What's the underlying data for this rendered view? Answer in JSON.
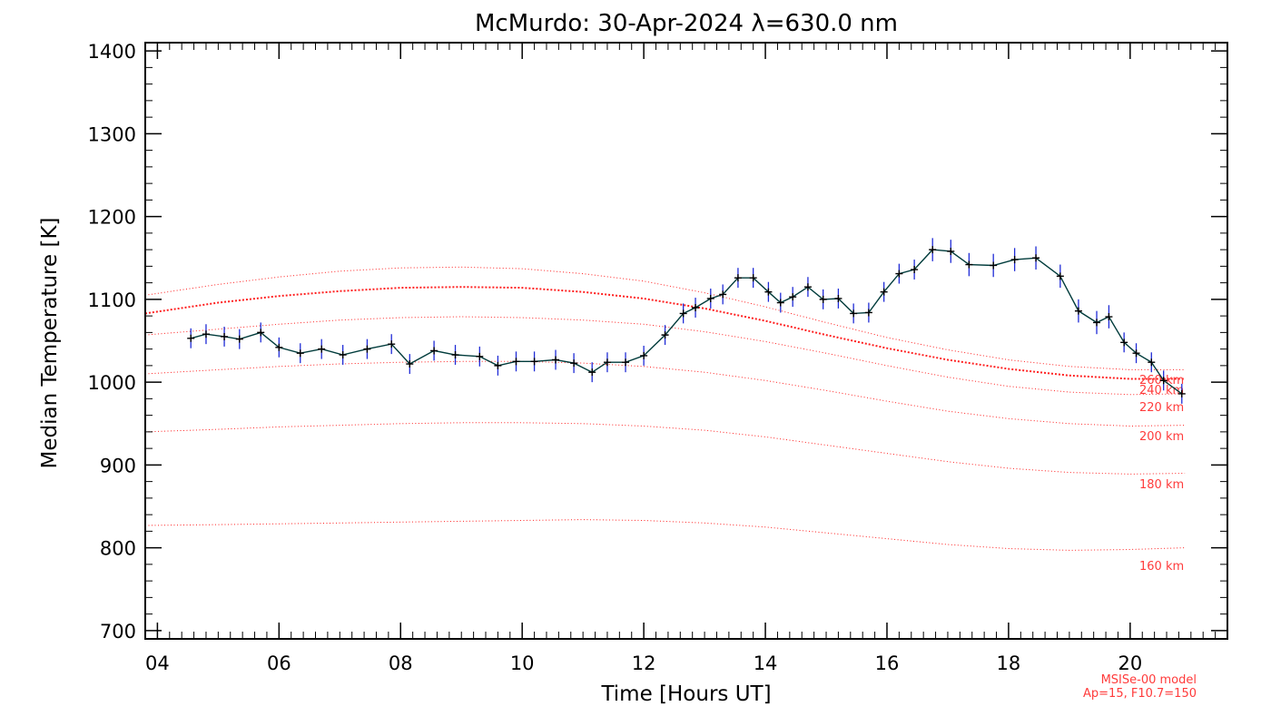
{
  "chart_data": {
    "type": "line",
    "title": "McMurdo: 30-Apr-2024 λ=630.0 nm",
    "xlabel": "Time [Hours UT]",
    "ylabel": "Median Temperature [K]",
    "xlim": [
      3.8,
      21.6
    ],
    "ylim": [
      690,
      1410
    ],
    "x_ticks": [
      4,
      6,
      8,
      10,
      12,
      14,
      16,
      18,
      20
    ],
    "x_tick_labels": [
      "04",
      "06",
      "08",
      "10",
      "12",
      "14",
      "16",
      "18",
      "20"
    ],
    "y_ticks": [
      700,
      800,
      900,
      1000,
      1100,
      1200,
      1300,
      1400
    ],
    "y_tick_labels": [
      "700",
      "800",
      "900",
      "1000",
      "1100",
      "1200",
      "1300",
      "1400"
    ],
    "colors": {
      "measured_line": "#003b3b",
      "error_bars": "#1f2bd6",
      "markers": "#000000",
      "model": "#ff2020",
      "axes": "#000000"
    },
    "measured": {
      "x": [
        4.55,
        4.8,
        5.1,
        5.35,
        5.7,
        6.0,
        6.35,
        6.7,
        7.05,
        7.45,
        7.85,
        8.15,
        8.55,
        8.9,
        9.3,
        9.6,
        9.9,
        10.2,
        10.55,
        10.85,
        11.15,
        11.4,
        11.7,
        12.0,
        12.35,
        12.65,
        12.85,
        13.1,
        13.3,
        13.55,
        13.8,
        14.05,
        14.25,
        14.45,
        14.7,
        14.95,
        15.2,
        15.45,
        15.7,
        15.95,
        16.2,
        16.45,
        16.75,
        17.05,
        17.35,
        17.75,
        18.1,
        18.45,
        18.85,
        19.15,
        19.45,
        19.65,
        19.9,
        20.1,
        20.35,
        20.55,
        20.85
      ],
      "y": [
        1053,
        1058,
        1055,
        1052,
        1060,
        1042,
        1035,
        1040,
        1033,
        1040,
        1046,
        1022,
        1038,
        1033,
        1031,
        1020,
        1025,
        1025,
        1027,
        1023,
        1012,
        1024,
        1024,
        1032,
        1057,
        1083,
        1090,
        1101,
        1106,
        1126,
        1126,
        1109,
        1096,
        1103,
        1115,
        1100,
        1101,
        1083,
        1084,
        1109,
        1131,
        1136,
        1160,
        1158,
        1142,
        1141,
        1148,
        1150,
        1128,
        1086,
        1072,
        1079,
        1048,
        1035,
        1024,
        1002,
        986
      ],
      "errors": [
        12,
        12,
        12,
        12,
        12,
        12,
        12,
        12,
        12,
        12,
        12,
        12,
        12,
        12,
        12,
        12,
        12,
        12,
        12,
        12,
        12,
        12,
        12,
        12,
        12,
        12,
        12,
        12,
        12,
        12,
        12,
        12,
        12,
        12,
        12,
        12,
        12,
        12,
        12,
        12,
        12,
        12,
        14,
        14,
        14,
        14,
        14,
        14,
        14,
        14,
        14,
        14,
        12,
        12,
        12,
        12,
        12
      ]
    },
    "model_curves": [
      {
        "name": "160 km",
        "x": [
          3.8,
          5,
          6,
          7,
          8,
          9,
          10,
          11,
          12,
          13,
          14,
          15,
          16,
          17,
          18,
          19,
          20,
          20.9
        ],
        "y": [
          827,
          828,
          829,
          830,
          831,
          832,
          833,
          834,
          833,
          830,
          825,
          818,
          811,
          804,
          799,
          797,
          798,
          800
        ]
      },
      {
        "name": "180 km",
        "x": [
          3.8,
          5,
          6,
          7,
          8,
          9,
          10,
          11,
          12,
          13,
          14,
          15,
          16,
          17,
          18,
          19,
          20,
          20.9
        ],
        "y": [
          940,
          943,
          946,
          948,
          950,
          951,
          951,
          950,
          947,
          942,
          934,
          924,
          914,
          904,
          896,
          891,
          889,
          890
        ]
      },
      {
        "name": "200 km",
        "x": [
          3.8,
          5,
          6,
          7,
          8,
          9,
          10,
          11,
          12,
          13,
          14,
          15,
          16,
          17,
          18,
          19,
          20,
          20.9
        ],
        "y": [
          1010,
          1015,
          1019,
          1022,
          1024,
          1025,
          1025,
          1023,
          1019,
          1012,
          1002,
          990,
          977,
          965,
          956,
          950,
          947,
          948
        ]
      },
      {
        "name": "220 km",
        "x": [
          3.8,
          5,
          6,
          7,
          8,
          9,
          10,
          11,
          12,
          13,
          14,
          15,
          16,
          17,
          18,
          19,
          20,
          20.9
        ],
        "y": [
          1057,
          1064,
          1070,
          1075,
          1078,
          1079,
          1078,
          1075,
          1070,
          1061,
          1049,
          1035,
          1020,
          1006,
          995,
          988,
          985,
          986
        ]
      },
      {
        "name": "240 km",
        "x": [
          3.8,
          5,
          6,
          7,
          8,
          9,
          10,
          11,
          12,
          13,
          14,
          15,
          16,
          17,
          18,
          19,
          20,
          20.9
        ],
        "y": [
          1083,
          1096,
          1104,
          1110,
          1114,
          1115,
          1114,
          1109,
          1101,
          1089,
          1074,
          1057,
          1041,
          1027,
          1016,
          1008,
          1004,
          1004
        ]
      },
      {
        "name": "260 km",
        "x": [
          3.8,
          5,
          6,
          7,
          8,
          9,
          10,
          11,
          12,
          13,
          14,
          15,
          16,
          17,
          18,
          19,
          20,
          20.9
        ],
        "y": [
          1105,
          1118,
          1127,
          1134,
          1138,
          1139,
          1137,
          1131,
          1122,
          1108,
          1091,
          1072,
          1054,
          1039,
          1027,
          1019,
          1015,
          1015
        ]
      }
    ],
    "model_labels": [
      "260 km",
      "240 km",
      "220 km",
      "200 km",
      "180 km",
      "160 km"
    ],
    "model_note": [
      "MSISe-00 model",
      "Ap=15, F10.7=150"
    ]
  }
}
